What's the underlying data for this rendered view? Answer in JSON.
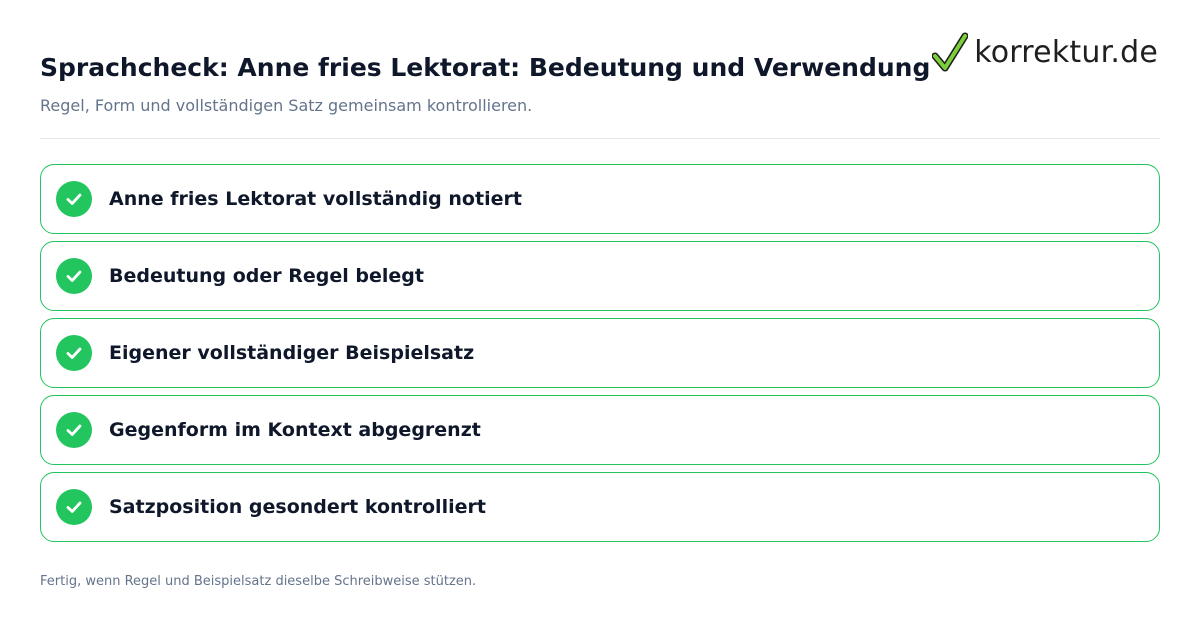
{
  "header": {
    "title": "Sprachcheck: Anne fries Lektorat: Bedeutung und Verwendung",
    "subtitle": "Regel, Form und vollständigen Satz gemeinsam kontrollieren."
  },
  "logo": {
    "text": "korrektur.de",
    "icon": "checkmark-logo-icon",
    "accent_color": "#65b32e"
  },
  "checklist": {
    "items": [
      {
        "label": "Anne fries Lektorat vollständig notiert",
        "checked": true,
        "icon": "check-circle-icon"
      },
      {
        "label": "Bedeutung oder Regel belegt",
        "checked": true,
        "icon": "check-circle-icon"
      },
      {
        "label": "Eigener vollständiger Beispielsatz",
        "checked": true,
        "icon": "check-circle-icon"
      },
      {
        "label": "Gegenform im Kontext abgegrenzt",
        "checked": true,
        "icon": "check-circle-icon"
      },
      {
        "label": "Satzposition gesondert kontrolliert",
        "checked": true,
        "icon": "check-circle-icon"
      }
    ]
  },
  "footer": {
    "note": "Fertig, wenn Regel und Beispielsatz dieselbe Schreibweise stützen."
  },
  "colors": {
    "success": "#22c55e",
    "title": "#0f172a",
    "muted": "#64748b",
    "divider": "#e5e7eb"
  }
}
